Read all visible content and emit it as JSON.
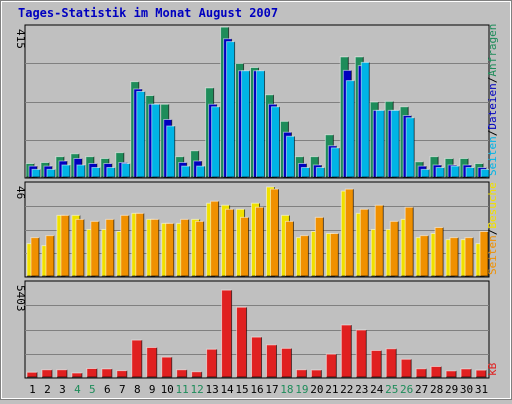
{
  "title": "Tages-Statistik im Monat August 2007",
  "colors": {
    "background": "#c0c0c0",
    "border": "#808080",
    "title": "#0000c0",
    "anfragen": "#1e8c5a",
    "dateien": "#0000c0",
    "seiten": "#00b4e6",
    "besuche": "#f0e000",
    "seiten_orange": "#f09000",
    "kb": "#e02020",
    "weekend": "#1e8c5a",
    "weekday": "#000000"
  },
  "right_labels": {
    "top": [
      {
        "text": "Seiten",
        "color": "#00b4e6"
      },
      {
        "text": "/",
        "color": "#000000"
      },
      {
        "text": "Dateien",
        "color": "#0000c0"
      },
      {
        "text": "/",
        "color": "#000000"
      },
      {
        "text": "Anfragen",
        "color": "#1e8c5a"
      }
    ],
    "middle": [
      {
        "text": "Seiten",
        "color": "#f09000"
      },
      {
        "text": "/",
        "color": "#000000"
      },
      {
        "text": "Besuche",
        "color": "#f0e000"
      }
    ],
    "bottom": [
      {
        "text": "kB",
        "color": "#e02020"
      }
    ]
  },
  "chart_data": [
    {
      "type": "bar",
      "panel": "hits",
      "ymax_label": "415",
      "ylim": [
        0,
        415
      ],
      "categories": [
        "1",
        "2",
        "3",
        "4",
        "5",
        "6",
        "7",
        "8",
        "9",
        "10",
        "11",
        "12",
        "13",
        "14",
        "15",
        "16",
        "17",
        "18",
        "19",
        "20",
        "21",
        "22",
        "23",
        "24",
        "25",
        "26",
        "27",
        "28",
        "29",
        "30",
        "31"
      ],
      "weekend_days": [
        "4",
        "5",
        "11",
        "12",
        "18",
        "19",
        "25",
        "26"
      ],
      "series": [
        {
          "name": "Anfragen",
          "values": [
            37,
            40,
            56,
            64,
            56,
            51,
            67,
            262,
            224,
            200,
            56,
            72,
            245,
            412,
            312,
            301,
            226,
            153,
            56,
            56,
            116,
            330,
            330,
            206,
            208,
            193,
            42,
            56,
            51,
            51,
            37
          ]
        },
        {
          "name": "Dateien",
          "values": [
            30,
            30,
            44,
            51,
            37,
            37,
            40,
            242,
            200,
            158,
            40,
            44,
            200,
            380,
            292,
            292,
            200,
            123,
            37,
            33,
            86,
            293,
            306,
            183,
            183,
            169,
            30,
            33,
            33,
            33,
            26
          ]
        },
        {
          "name": "Seiten",
          "values": [
            21,
            21,
            33,
            33,
            26,
            26,
            37,
            235,
            200,
            140,
            30,
            30,
            193,
            372,
            292,
            292,
            193,
            112,
            26,
            26,
            80,
            265,
            315,
            183,
            183,
            163,
            21,
            26,
            30,
            26,
            21
          ]
        }
      ]
    },
    {
      "type": "bar",
      "panel": "visits",
      "ymax_label": "46",
      "ylim": [
        0,
        46
      ],
      "categories": [
        "1",
        "2",
        "3",
        "4",
        "5",
        "6",
        "7",
        "8",
        "9",
        "10",
        "11",
        "12",
        "13",
        "14",
        "15",
        "16",
        "17",
        "18",
        "19",
        "20",
        "21",
        "22",
        "23",
        "24",
        "25",
        "26",
        "27",
        "28",
        "29",
        "30",
        "31"
      ],
      "series": [
        {
          "name": "Besuche",
          "values": [
            16,
            15,
            30,
            30,
            23,
            23,
            22,
            31,
            28,
            26,
            26,
            28,
            36,
            35,
            33,
            36,
            44,
            30,
            19,
            22,
            21,
            42,
            31,
            23,
            23,
            28,
            19,
            21,
            18,
            18,
            16
          ]
        },
        {
          "name": "Seiten",
          "values": [
            19,
            20,
            30,
            28,
            27,
            28,
            30,
            31,
            28,
            26,
            28,
            27,
            37,
            33,
            29,
            34,
            43,
            27,
            20,
            29,
            21,
            43,
            33,
            35,
            27,
            34,
            20,
            24,
            19,
            19,
            22
          ]
        }
      ]
    },
    {
      "type": "bar",
      "panel": "kb",
      "ymax_label": "5403",
      "ylim": [
        0,
        5403
      ],
      "categories": [
        "1",
        "2",
        "3",
        "4",
        "5",
        "6",
        "7",
        "8",
        "9",
        "10",
        "11",
        "12",
        "13",
        "14",
        "15",
        "16",
        "17",
        "18",
        "19",
        "20",
        "21",
        "22",
        "23",
        "24",
        "25",
        "26",
        "27",
        "28",
        "29",
        "30",
        "31"
      ],
      "series": [
        {
          "name": "kB",
          "values": [
            270,
            410,
            410,
            230,
            480,
            460,
            360,
            2100,
            1680,
            1130,
            410,
            300,
            1580,
            4940,
            3970,
            2270,
            1830,
            1630,
            410,
            400,
            1300,
            2960,
            2670,
            1510,
            1610,
            1010,
            470,
            600,
            350,
            460,
            390
          ]
        }
      ]
    }
  ]
}
